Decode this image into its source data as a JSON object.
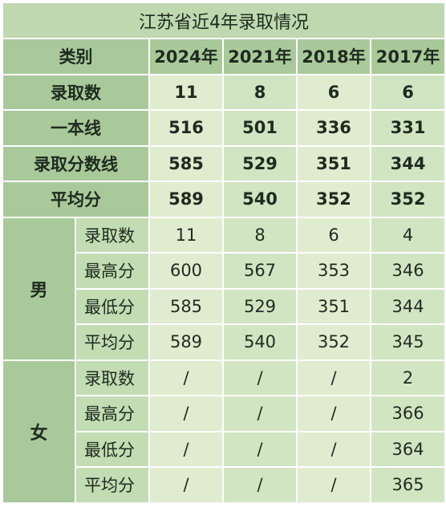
{
  "title": "江苏省近4年录取情况",
  "header": {
    "category": "类别",
    "years": [
      "2024年",
      "2021年",
      "2018年",
      "2017年"
    ]
  },
  "summary_rows": [
    {
      "label": "录取数",
      "values": [
        "11",
        "8",
        "6",
        "6"
      ]
    },
    {
      "label": "一本线",
      "values": [
        "516",
        "501",
        "336",
        "331"
      ]
    },
    {
      "label": "录取分数线",
      "values": [
        "585",
        "529",
        "351",
        "344"
      ]
    },
    {
      "label": "平均分",
      "values": [
        "589",
        "540",
        "352",
        "352"
      ]
    }
  ],
  "groups": [
    {
      "label": "男",
      "rows": [
        {
          "label": "录取数",
          "values": [
            "11",
            "8",
            "6",
            "4"
          ]
        },
        {
          "label": "最高分",
          "values": [
            "600",
            "567",
            "353",
            "346"
          ]
        },
        {
          "label": "最低分",
          "values": [
            "585",
            "529",
            "351",
            "344"
          ]
        },
        {
          "label": "平均分",
          "values": [
            "589",
            "540",
            "352",
            "345"
          ]
        }
      ]
    },
    {
      "label": "女",
      "rows": [
        {
          "label": "录取数",
          "values": [
            "/",
            "/",
            "/",
            "2"
          ]
        },
        {
          "label": "最高分",
          "values": [
            "/",
            "/",
            "/",
            "366"
          ]
        },
        {
          "label": "最低分",
          "values": [
            "/",
            "/",
            "/",
            "364"
          ]
        },
        {
          "label": "平均分",
          "values": [
            "/",
            "/",
            "/",
            "365"
          ]
        }
      ]
    }
  ]
}
